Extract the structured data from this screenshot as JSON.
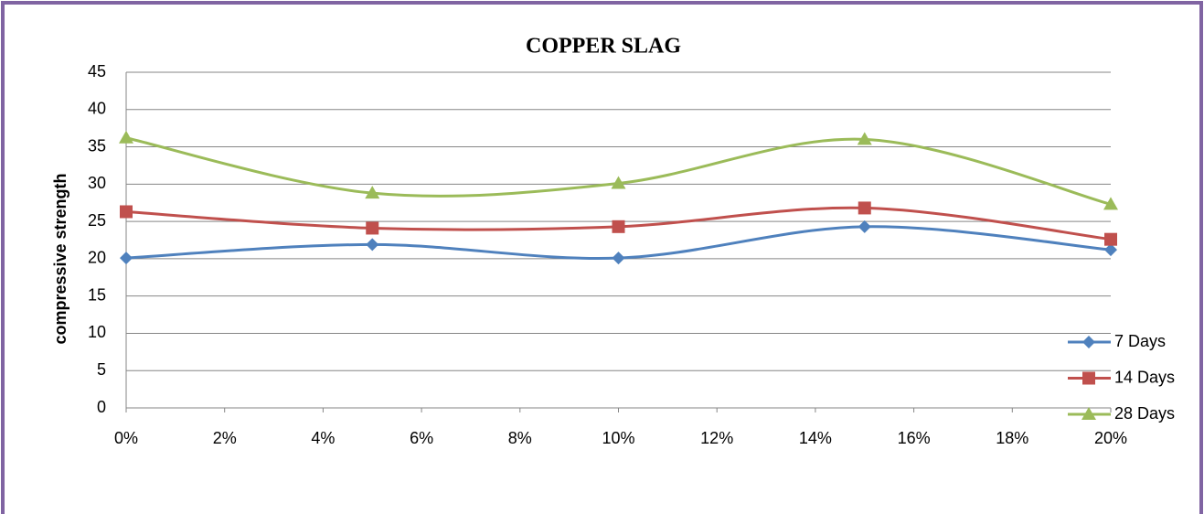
{
  "chart_data": {
    "type": "line",
    "title": "COPPER SLAG",
    "ylabel": "compressive strength",
    "x": [
      0,
      5,
      10,
      15,
      20
    ],
    "xlim": [
      0,
      20
    ],
    "xticks": [
      {
        "value": 0,
        "label": "0%"
      },
      {
        "value": 2,
        "label": "2%"
      },
      {
        "value": 4,
        "label": "4%"
      },
      {
        "value": 6,
        "label": "6%"
      },
      {
        "value": 8,
        "label": "8%"
      },
      {
        "value": 10,
        "label": "10%"
      },
      {
        "value": 12,
        "label": "12%"
      },
      {
        "value": 14,
        "label": "14%"
      },
      {
        "value": 16,
        "label": "16%"
      },
      {
        "value": 18,
        "label": "18%"
      },
      {
        "value": 20,
        "label": "20%"
      }
    ],
    "ylim": [
      0,
      45
    ],
    "yticks": [
      0,
      5,
      10,
      15,
      20,
      25,
      30,
      35,
      40,
      45
    ],
    "grid": true,
    "smooth": true,
    "legend": "lower right",
    "series": [
      {
        "name": "7 Days",
        "color": "#4f81bd",
        "marker": "diamond",
        "values": [
          20.1,
          21.9,
          20.1,
          24.3,
          21.2
        ]
      },
      {
        "name": "14 Days",
        "color": "#c0504d",
        "marker": "square",
        "values": [
          26.3,
          24.1,
          24.3,
          26.8,
          22.6
        ]
      },
      {
        "name": "28 Days",
        "color": "#9bbb59",
        "marker": "triangle",
        "values": [
          36.2,
          28.8,
          30.1,
          36.0,
          27.3
        ]
      }
    ]
  }
}
